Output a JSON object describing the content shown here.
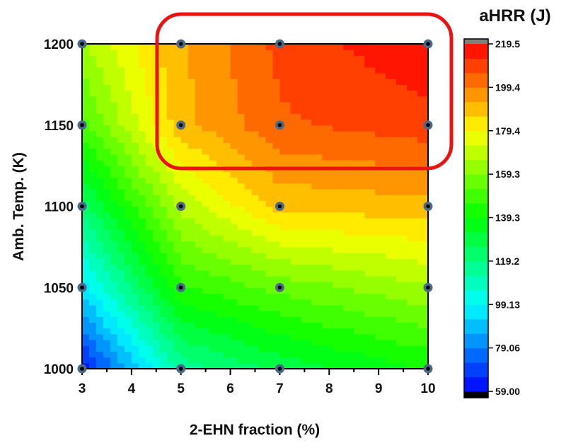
{
  "chart_data": {
    "type": "heatmap",
    "subtype": "filled-contour",
    "xlabel": "2-EHN fraction (%)",
    "ylabel": "Amb. Temp. (K)",
    "colorbar_title": "aHRR (J)",
    "x": [
      3,
      5,
      7,
      10
    ],
    "y": [
      1000,
      1050,
      1100,
      1150,
      1200
    ],
    "z": [
      [
        62,
        115,
        128,
        140
      ],
      [
        95,
        145,
        155,
        165
      ],
      [
        122,
        168,
        188,
        190
      ],
      [
        150,
        190,
        205,
        210
      ],
      [
        165,
        192,
        208,
        219
      ]
    ],
    "xlim": [
      3,
      10
    ],
    "ylim": [
      1000,
      1200
    ],
    "x_ticks": [
      "3",
      "4",
      "5",
      "6",
      "7",
      "8",
      "9",
      "10"
    ],
    "y_ticks": [
      "1000",
      "1050",
      "1100",
      "1150",
      "1200"
    ],
    "colorbar_ticks": [
      "219.5",
      "199.4",
      "179.4",
      "159.3",
      "139.3",
      "119.2",
      "99.13",
      "79.06",
      "59.00"
    ],
    "zlim": [
      59.0,
      219.5
    ],
    "colormap": [
      "#0000ff",
      "#00ffff",
      "#00ff00",
      "#ffff00",
      "#ff0000"
    ],
    "over_color": "#808080",
    "under_color": "#000000",
    "marker_color": "#4a6a8a",
    "highlight_box_color": "#ee1111",
    "grid": false
  }
}
